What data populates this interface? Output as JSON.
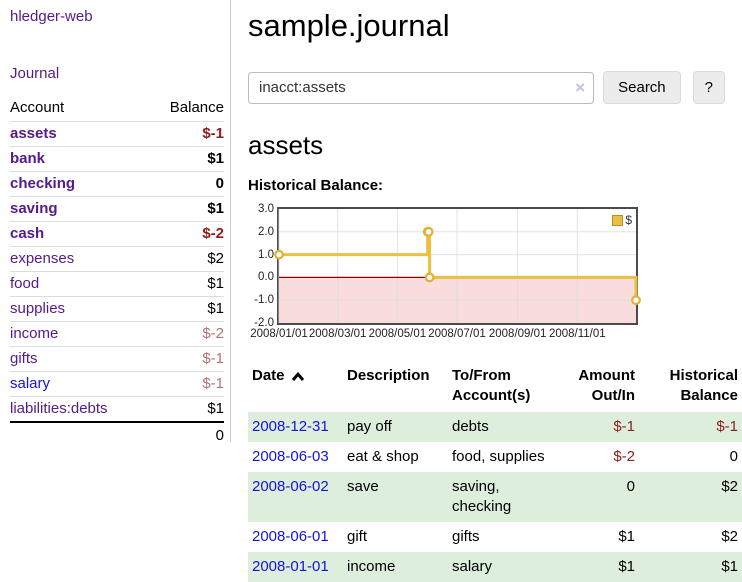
{
  "app": {
    "title": "hledger-web"
  },
  "sidebar": {
    "nav_journal": "Journal",
    "table": {
      "headers": [
        "Account",
        "Balance"
      ],
      "rows": [
        {
          "account": "assets",
          "balance": "$-1",
          "indent": 1,
          "bold": true,
          "neg": "strong",
          "link_color": "purple"
        },
        {
          "account": "bank",
          "balance": "$1",
          "indent": 2,
          "bold": true,
          "neg": null,
          "link_color": "purple"
        },
        {
          "account": "checking",
          "balance": "0",
          "indent": 3,
          "bold": true,
          "neg": null,
          "link_color": "purple"
        },
        {
          "account": "saving",
          "balance": "$1",
          "indent": 3,
          "bold": true,
          "neg": null,
          "link_color": "purple"
        },
        {
          "account": "cash",
          "balance": "$-2",
          "indent": 2,
          "bold": true,
          "neg": "strong",
          "link_color": "purple"
        },
        {
          "account": "expenses",
          "balance": "$2",
          "indent": 1,
          "bold": false,
          "neg": null,
          "link_color": "purple"
        },
        {
          "account": "food",
          "balance": "$1",
          "indent": 2,
          "bold": false,
          "neg": null,
          "link_color": "purple"
        },
        {
          "account": "supplies",
          "balance": "$1",
          "indent": 2,
          "bold": false,
          "neg": null,
          "link_color": "purple"
        },
        {
          "account": "income",
          "balance": "$-2",
          "indent": 1,
          "bold": false,
          "neg": "soft",
          "link_color": "purple"
        },
        {
          "account": "gifts",
          "balance": "$-1",
          "indent": 2,
          "bold": false,
          "neg": "soft",
          "link_color": "purple"
        },
        {
          "account": "salary",
          "balance": "$-1",
          "indent": 2,
          "bold": false,
          "neg": "soft",
          "link_color": "blue"
        },
        {
          "account": "liabilities:debts",
          "balance": "$1",
          "indent": 1,
          "bold": false,
          "neg": null,
          "link_color": "purple"
        }
      ],
      "total": "0"
    }
  },
  "header": {
    "title": "sample.journal"
  },
  "search": {
    "value": "inacct:assets",
    "clear_icon": "×",
    "button_label": "Search",
    "help_label": "?"
  },
  "account_page": {
    "title": "assets",
    "section_label": "Historical Balance:"
  },
  "chart_data": {
    "type": "line",
    "title": "Historical Balance",
    "step": true,
    "series": [
      {
        "name": "$",
        "color": "#e9c044",
        "points": [
          [
            "2008-01-01",
            1
          ],
          [
            "2008-06-01",
            2
          ],
          [
            "2008-06-02",
            2
          ],
          [
            "2008-06-03",
            0
          ],
          [
            "2008-12-31",
            -1
          ]
        ]
      }
    ],
    "ylim": [
      -2.0,
      3.0
    ],
    "yticks": [
      3.0,
      2.0,
      1.0,
      0.0,
      -1.0,
      -2.0
    ],
    "xticks": [
      "2008/01/01",
      "2008/03/01",
      "2008/05/01",
      "2008/07/01",
      "2008/09/01",
      "2008/11/01"
    ],
    "x_start": "2008-01-01",
    "x_days": 365,
    "negative_fill": "#f9dcdc",
    "zero_line_color": "#8b0000",
    "grid_color": "#dddddd",
    "legend": {
      "label": "$",
      "position": "top-right"
    }
  },
  "register": {
    "headers": [
      "Date",
      "Description",
      "To/From Account(s)",
      "Amount Out/In",
      "Historical Balance"
    ],
    "sort_icon": "chevron-up",
    "rows": [
      {
        "date": "2008-12-31",
        "description": "pay off",
        "accounts": "debts",
        "amount": "$-1",
        "balance": "$-1",
        "amount_neg": true,
        "balance_neg": true,
        "shaded": true
      },
      {
        "date": "2008-06-03",
        "description": "eat & shop",
        "accounts": "food, supplies",
        "amount": "$-2",
        "balance": "0",
        "amount_neg": true,
        "balance_neg": false,
        "shaded": false
      },
      {
        "date": "2008-06-02",
        "description": "save",
        "accounts": "saving, checking",
        "amount": "0",
        "balance": "$2",
        "amount_neg": false,
        "balance_neg": false,
        "shaded": true
      },
      {
        "date": "2008-06-01",
        "description": "gift",
        "accounts": "gifts",
        "amount": "$1",
        "balance": "$2",
        "amount_neg": false,
        "balance_neg": false,
        "shaded": false
      },
      {
        "date": "2008-01-01",
        "description": "income",
        "accounts": "salary",
        "amount": "$1",
        "balance": "$1",
        "amount_neg": false,
        "balance_neg": false,
        "shaded": true
      }
    ]
  },
  "colors": {
    "link_purple": "#551A8B",
    "link_blue": "#1414dd",
    "negative_strong": "#8f1d1d",
    "negative_soft": "#b57174",
    "row_shade_green": "#ddeedd",
    "chart_line_gold": "#e9c044",
    "chart_negative_fill": "#f9dcdc",
    "chart_zero_line": "#8b0000"
  }
}
